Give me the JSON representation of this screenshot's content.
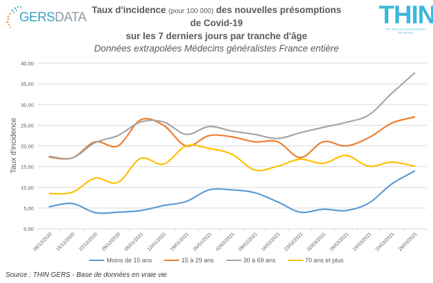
{
  "logos": {
    "left": {
      "brand": "GERS",
      "suffix": "DATA"
    },
    "right": {
      "brand": "THIN",
      "tagline": "THE HEALTH IMPROVEMENT NETWORK"
    }
  },
  "title": {
    "line1_main": "Taux d'incidence ",
    "line1_sub": "(pour 100 000)",
    "line1_end": " des nouvelles présomptions",
    "line2": "de Covid-19",
    "line3": "sur les 7 derniers jours par tranche d'âge",
    "line4": "Données extrapolées Médecins généralistes France entière"
  },
  "source": "Source : THIN GERS - Base de données en vraie vie",
  "chart_data": {
    "type": "line",
    "title": "Taux d'incidence (pour 100 000) des nouvelles présomptions de Covid-19 sur les 7 derniers jours par tranche d'âge",
    "subtitle": "Données extrapolées Médecins généralistes France entière",
    "xlabel": "",
    "ylabel": "Taux d'incidence",
    "ylim": [
      0,
      40
    ],
    "yticks": [
      "0,00",
      "5,00",
      "10,00",
      "15,00",
      "20,00",
      "25,00",
      "30,00",
      "35,00",
      "40,00"
    ],
    "grid": true,
    "legend_position": "bottom",
    "x": [
      "08/12/2020",
      "15/12/2020",
      "22/12/2020",
      "29/12/2020",
      "05/01/2021",
      "12/01/2021",
      "19/01/2021",
      "26/01/2021",
      "02/02/2021",
      "09/02/2021",
      "16/02/2021",
      "23/02/2021",
      "02/03/2021",
      "09/03/2021",
      "15/03/2021",
      "23/03/2021",
      "29/03/2021"
    ],
    "series": [
      {
        "name": "Moins de 15 ans",
        "color": "#5b9bd5",
        "values": [
          5.3,
          6.1,
          3.9,
          4.0,
          4.4,
          5.6,
          6.6,
          9.4,
          9.4,
          8.7,
          6.5,
          4.0,
          4.7,
          4.4,
          6.2,
          10.8,
          13.9
        ]
      },
      {
        "name": "15 à 29 ans",
        "color": "#ed7d31",
        "values": [
          17.3,
          17.1,
          21.0,
          20.0,
          26.3,
          25.0,
          20.0,
          22.5,
          22.2,
          21.0,
          21.0,
          17.2,
          21.0,
          20.0,
          22.0,
          25.5,
          27.0
        ]
      },
      {
        "name": "30 à 69 ans",
        "color": "#a5a5a5",
        "values": [
          17.5,
          17.1,
          20.8,
          22.5,
          25.8,
          25.8,
          22.8,
          24.7,
          23.6,
          22.8,
          21.8,
          23.2,
          24.5,
          25.7,
          27.5,
          32.7,
          37.6
        ]
      },
      {
        "name": "70 ans et plus",
        "color": "#ffc000",
        "values": [
          8.5,
          8.8,
          12.2,
          11.2,
          17.0,
          15.6,
          20.0,
          19.4,
          18.0,
          14.2,
          15.1,
          16.8,
          15.8,
          17.7,
          15.1,
          16.1,
          15.1
        ]
      }
    ]
  }
}
